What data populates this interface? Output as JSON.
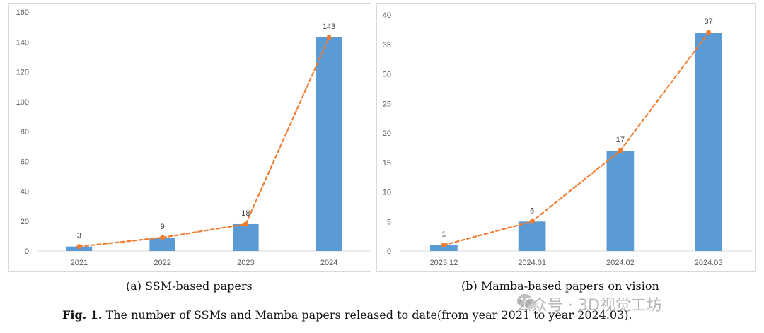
{
  "colors": {
    "bar": "#5b9bd5",
    "line": "#ed7d31",
    "axis": "#d9d9d9",
    "grid": "#d9d9d9",
    "text": "#595959"
  },
  "chart_data": [
    {
      "type": "bar",
      "overlay": "line",
      "categories": [
        "2021",
        "2022",
        "2023",
        "2024"
      ],
      "values": [
        3,
        9,
        18,
        143
      ],
      "data_labels": [
        "3",
        "9",
        "18",
        "143"
      ],
      "yticks": [
        "0",
        "20",
        "40",
        "60",
        "80",
        "100",
        "120",
        "140",
        "160"
      ],
      "ylim": [
        0,
        160
      ],
      "grid": false,
      "title": "",
      "xlabel": "",
      "ylabel": ""
    },
    {
      "type": "bar",
      "overlay": "line",
      "categories": [
        "2023.12",
        "2024.01",
        "2024.02",
        "2024.03"
      ],
      "values": [
        1,
        5,
        17,
        37
      ],
      "data_labels": [
        "1",
        "5",
        "17",
        "37"
      ],
      "yticks": [
        "0",
        "5",
        "10",
        "15",
        "20",
        "25",
        "30",
        "35",
        "40"
      ],
      "ylim": [
        0,
        40
      ],
      "grid": false,
      "title": "",
      "xlabel": "",
      "ylabel": ""
    }
  ],
  "captions": {
    "a": "(a) SSM-based papers",
    "b": "(b) Mamba-based papers on vision",
    "fig_label": "Fig. 1.",
    "fig_text": " The number of SSMs and Mamba papers released to date(from year 2021 to year 2024.03)."
  },
  "watermark": {
    "text": "公众号 · 3D视觉工坊",
    "icon": "wechat-icon"
  }
}
